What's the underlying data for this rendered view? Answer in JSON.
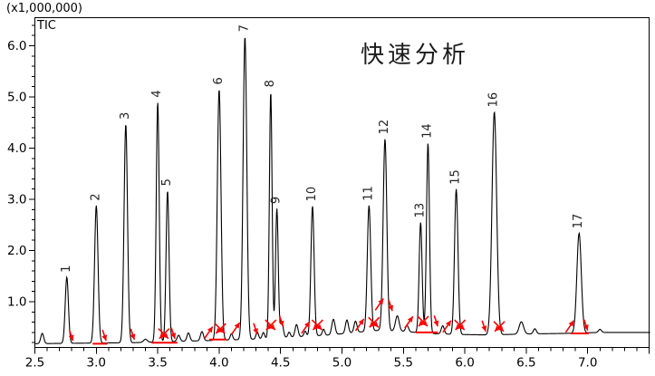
{
  "header": {
    "scale_label": "(x1,000,000)",
    "signal_label": "TIC"
  },
  "annotation": {
    "text": "快速分析"
  },
  "chart_data": {
    "type": "line",
    "title": "快速分析",
    "signal": "TIC",
    "y_scale_note": "(x1,000,000)",
    "x_axis": {
      "min": 2.5,
      "max": 7.51,
      "major_tick_values": [
        2.5,
        3.0,
        3.5,
        4.0,
        4.5,
        5.0,
        5.5,
        6.0,
        6.5,
        7.0
      ],
      "major_tick_labels": [
        "2.5",
        "3.0",
        "3.5",
        "4.0",
        "4.5",
        "5.0",
        "5.5",
        "6.0",
        "6.5",
        "7.0"
      ],
      "minor_step": 0.1
    },
    "y_axis": {
      "min": 0.1,
      "max": 6.5,
      "major_tick_values": [
        1.0,
        2.0,
        3.0,
        4.0,
        5.0,
        6.0
      ],
      "major_tick_labels": [
        "1.0",
        "2.0",
        "3.0",
        "4.0",
        "5.0",
        "6.0"
      ],
      "minor_step": 0.2
    },
    "peaks": [
      {
        "id": "1",
        "t": 2.76,
        "height": 1.48,
        "w": 0.013
      },
      {
        "id": "2",
        "t": 3.0,
        "height": 2.88,
        "w": 0.014
      },
      {
        "id": "3",
        "t": 3.24,
        "height": 4.47,
        "w": 0.014
      },
      {
        "id": "4",
        "t": 3.5,
        "height": 4.9,
        "w": 0.012
      },
      {
        "id": "5",
        "t": 3.58,
        "height": 3.17,
        "w": 0.012
      },
      {
        "id": "6",
        "t": 4.0,
        "height": 5.15,
        "w": 0.015
      },
      {
        "id": "7",
        "t": 4.21,
        "height": 6.18,
        "w": 0.015
      },
      {
        "id": "8",
        "t": 4.42,
        "height": 5.1,
        "w": 0.011
      },
      {
        "id": "9",
        "t": 4.47,
        "height": 2.82,
        "w": 0.011
      },
      {
        "id": "10",
        "t": 4.76,
        "height": 2.87,
        "w": 0.013
      },
      {
        "id": "11",
        "t": 5.22,
        "height": 2.88,
        "w": 0.014
      },
      {
        "id": "12",
        "t": 5.35,
        "height": 4.18,
        "w": 0.015
      },
      {
        "id": "13",
        "t": 5.64,
        "height": 2.55,
        "w": 0.012
      },
      {
        "id": "14",
        "t": 5.7,
        "height": 4.1,
        "w": 0.012
      },
      {
        "id": "15",
        "t": 5.93,
        "height": 3.2,
        "w": 0.014
      },
      {
        "id": "16",
        "t": 6.24,
        "height": 4.71,
        "w": 0.019
      },
      {
        "id": "17",
        "t": 6.93,
        "height": 2.34,
        "w": 0.018
      }
    ],
    "minor_bumps": [
      [
        2.56,
        0.2,
        0.012
      ],
      [
        3.4,
        0.06,
        0.015
      ],
      [
        3.67,
        0.12,
        0.012
      ],
      [
        3.75,
        0.16,
        0.012
      ],
      [
        3.86,
        0.18,
        0.012
      ],
      [
        4.1,
        0.12,
        0.01
      ],
      [
        4.31,
        0.14,
        0.01
      ],
      [
        4.36,
        0.12,
        0.01
      ],
      [
        4.51,
        0.3,
        0.012
      ],
      [
        4.57,
        0.1,
        0.01
      ],
      [
        4.63,
        0.24,
        0.012
      ],
      [
        4.7,
        0.1,
        0.01
      ],
      [
        4.85,
        0.12,
        0.01
      ],
      [
        4.93,
        0.3,
        0.013
      ],
      [
        5.04,
        0.26,
        0.012
      ],
      [
        5.11,
        0.22,
        0.012
      ],
      [
        5.45,
        0.3,
        0.015
      ],
      [
        5.53,
        0.12,
        0.012
      ],
      [
        5.82,
        0.16,
        0.012
      ],
      [
        6.46,
        0.24,
        0.018
      ],
      [
        6.57,
        0.1,
        0.012
      ],
      [
        7.1,
        0.06,
        0.012
      ]
    ],
    "baseline_points": [
      [
        2.5,
        0.18
      ],
      [
        3.3,
        0.2
      ],
      [
        3.9,
        0.24
      ],
      [
        4.3,
        0.27
      ],
      [
        4.6,
        0.31
      ],
      [
        4.9,
        0.35
      ],
      [
        5.15,
        0.41
      ],
      [
        5.3,
        0.44
      ],
      [
        5.5,
        0.42
      ],
      [
        5.7,
        0.38
      ],
      [
        5.95,
        0.36
      ],
      [
        6.2,
        0.35
      ],
      [
        6.5,
        0.37
      ],
      [
        6.8,
        0.38
      ],
      [
        7.1,
        0.4
      ],
      [
        7.51,
        0.4
      ]
    ],
    "markers": [
      {
        "t": 2.81,
        "v": 0.22,
        "kind": "down"
      },
      {
        "t": 3.08,
        "v": 0.22,
        "kind": "down"
      },
      {
        "t": 3.31,
        "v": 0.24,
        "kind": "down"
      },
      {
        "t": 3.55,
        "v": 0.28,
        "kind": "x"
      },
      {
        "t": 3.64,
        "v": 0.26,
        "kind": "down"
      },
      {
        "t": 3.94,
        "v": 0.3,
        "kind": "up"
      },
      {
        "t": 4.01,
        "v": 0.38,
        "kind": "x"
      },
      {
        "t": 4.16,
        "v": 0.38,
        "kind": "up"
      },
      {
        "t": 4.31,
        "v": 0.35,
        "kind": "down"
      },
      {
        "t": 4.42,
        "v": 0.45,
        "kind": "x"
      },
      {
        "t": 4.52,
        "v": 0.5,
        "kind": "down"
      },
      {
        "t": 4.73,
        "v": 0.4,
        "kind": "up"
      },
      {
        "t": 4.8,
        "v": 0.45,
        "kind": "x"
      },
      {
        "t": 5.17,
        "v": 0.45,
        "kind": "up"
      },
      {
        "t": 5.26,
        "v": 0.5,
        "kind": "x"
      },
      {
        "t": 5.33,
        "v": 0.85,
        "kind": "up"
      },
      {
        "t": 5.41,
        "v": 0.8,
        "kind": "down"
      },
      {
        "t": 5.57,
        "v": 0.5,
        "kind": "up"
      },
      {
        "t": 5.66,
        "v": 0.52,
        "kind": "x"
      },
      {
        "t": 5.78,
        "v": 0.5,
        "kind": "down"
      },
      {
        "t": 5.88,
        "v": 0.42,
        "kind": "up"
      },
      {
        "t": 5.96,
        "v": 0.45,
        "kind": "x"
      },
      {
        "t": 6.17,
        "v": 0.4,
        "kind": "down"
      },
      {
        "t": 6.28,
        "v": 0.42,
        "kind": "x"
      },
      {
        "t": 6.88,
        "v": 0.42,
        "kind": "up"
      },
      {
        "t": 7.0,
        "v": 0.42,
        "kind": "down"
      }
    ],
    "baseline_segments": [
      [
        2.97,
        3.09,
        0.18
      ],
      [
        3.45,
        3.66,
        0.2
      ],
      [
        3.92,
        4.06,
        0.26
      ],
      [
        5.6,
        5.78,
        0.4
      ],
      [
        6.86,
        7.01,
        0.38
      ]
    ],
    "colors": {
      "trace": "#000000",
      "marker": "#ff0000",
      "label": "#222222"
    }
  }
}
